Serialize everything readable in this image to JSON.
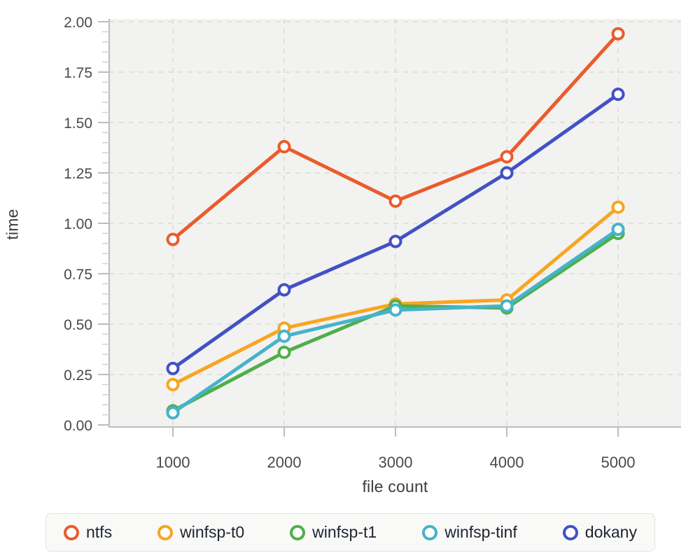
{
  "chart_data": {
    "type": "line",
    "title": "",
    "xlabel": "file count",
    "ylabel": "time",
    "x": [
      1000,
      2000,
      3000,
      4000,
      5000
    ],
    "x_tick_labels": [
      "1000",
      "2000",
      "3000",
      "4000",
      "5000"
    ],
    "ylim": [
      0,
      2.0
    ],
    "y_ticks": [
      0,
      0.25,
      0.5,
      0.75,
      1.0,
      1.25,
      1.5,
      1.75,
      2.0
    ],
    "y_tick_labels": [
      "0.00",
      "0.25",
      "0.50",
      "0.75",
      "1.00",
      "1.25",
      "1.50",
      "1.75",
      "2.00"
    ],
    "y_minor_step": 0.05,
    "grid": "dashed",
    "legend_position": "bottom",
    "series": [
      {
        "name": "ntfs",
        "color": "#eb5b2b",
        "values": [
          0.92,
          1.38,
          1.11,
          1.33,
          1.94
        ]
      },
      {
        "name": "winfsp-t0",
        "color": "#f8a521",
        "values": [
          0.2,
          0.48,
          0.6,
          0.62,
          1.08
        ]
      },
      {
        "name": "winfsp-t1",
        "color": "#50ae4b",
        "values": [
          0.07,
          0.36,
          0.59,
          0.58,
          0.95
        ]
      },
      {
        "name": "winfsp-tinf",
        "color": "#45b3c9",
        "values": [
          0.06,
          0.44,
          0.57,
          0.59,
          0.97
        ]
      },
      {
        "name": "dokany",
        "color": "#4351c5",
        "values": [
          0.28,
          0.67,
          0.91,
          1.25,
          1.64
        ]
      }
    ]
  },
  "colors": {
    "plot_bg": "#f2f2f1",
    "grid": "#d9d9d9",
    "axis": "#bdbdbd",
    "minor_tick": "#d2d2d2",
    "tick_label": "#4a4a4a",
    "axis_title": "#3d3d3d",
    "legend_text": "#1e2430",
    "legend_bg": "#f9f9f8",
    "legend_border": "#e2e2e0",
    "marker_fill": "#ffffff"
  }
}
